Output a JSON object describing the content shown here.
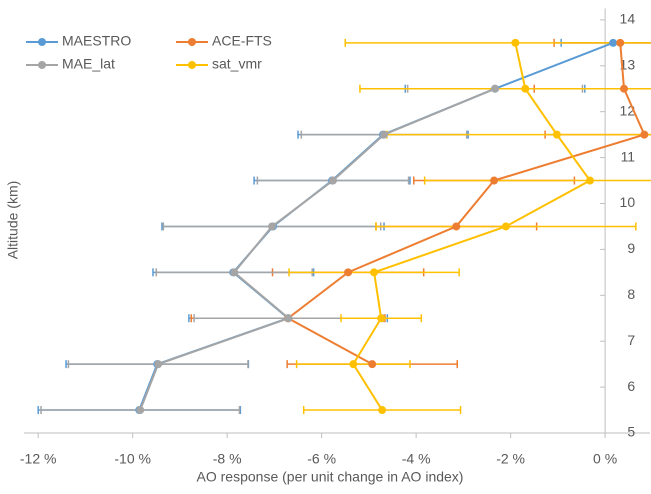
{
  "chart_data": {
    "type": "profile",
    "xlabel": "AO response (per unit change in AO index)",
    "ylabel": "Altitude (km)",
    "xlim": [
      -12.3,
      0.95
    ],
    "ylim": [
      5,
      14.25
    ],
    "xticks": [
      {
        "value": -12,
        "label": "-12 %"
      },
      {
        "value": -10,
        "label": "-10 %"
      },
      {
        "value": -8,
        "label": "-8 %"
      },
      {
        "value": -6,
        "label": "-6 %"
      },
      {
        "value": -4,
        "label": "-4 %"
      },
      {
        "value": -2,
        "label": "-2 %"
      },
      {
        "value": 0,
        "label": "0 %"
      }
    ],
    "yticks": [
      5,
      6,
      7,
      8,
      9,
      10,
      11,
      12,
      13,
      14
    ],
    "y": [
      5.5,
      6.5,
      7.5,
      8.5,
      9.5,
      10.5,
      11.5,
      12.5,
      13.5
    ],
    "legend": "top-left",
    "series": [
      {
        "name": "MAESTRO",
        "color": "#5b9bd5",
        "values": [
          -9.86,
          -9.48,
          -6.71,
          -7.87,
          -7.03,
          -5.78,
          -4.7,
          -2.33,
          0.17
        ],
        "errors": [
          2.14,
          1.93,
          2.1,
          1.7,
          2.35,
          1.65,
          1.8,
          1.9,
          1.1
        ]
      },
      {
        "name": "ACE-FTS",
        "color": "#ed7d31",
        "values": [
          null,
          -4.93,
          -6.71,
          -5.44,
          -3.15,
          -2.35,
          0.83,
          0.4,
          0.32
        ],
        "errors": [
          null,
          1.8,
          2.05,
          1.6,
          1.7,
          1.7,
          2.1,
          1.9,
          1.4
        ]
      },
      {
        "name": "MAE_lat",
        "color": "#a5a5a5",
        "values": [
          -9.84,
          -9.46,
          -6.7,
          -7.85,
          -7.05,
          -5.76,
          -4.68,
          -2.33,
          null
        ],
        "errors": [
          2.1,
          1.9,
          2.0,
          1.65,
          2.3,
          1.6,
          1.75,
          1.85,
          null
        ]
      },
      {
        "name": "sat_vmr",
        "color": "#ffc000",
        "values": [
          -4.72,
          -5.33,
          -4.74,
          -4.89,
          -2.1,
          -0.32,
          -1.02,
          -1.69,
          -1.9
        ],
        "errors": [
          1.66,
          1.2,
          0.85,
          1.8,
          2.75,
          3.5,
          3.6,
          3.5,
          3.6
        ]
      }
    ]
  }
}
